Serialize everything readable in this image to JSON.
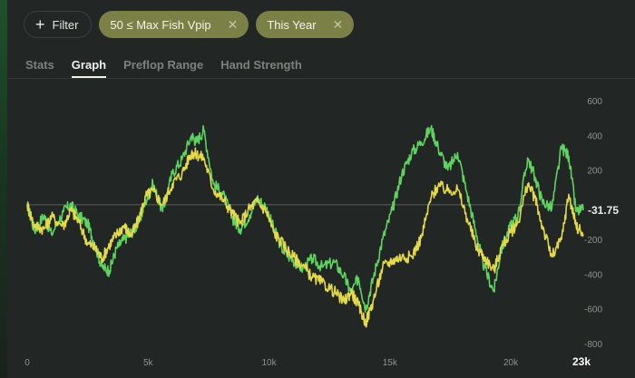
{
  "filters": {
    "add_label": "Filter",
    "chips": [
      {
        "label": "50 ≤ Max Fish Vpip"
      },
      {
        "label": "This Year"
      }
    ]
  },
  "tabs": [
    {
      "label": "Stats",
      "active": false
    },
    {
      "label": "Graph",
      "active": true
    },
    {
      "label": "Preflop Range",
      "active": false
    },
    {
      "label": "Hand Strength",
      "active": false
    }
  ],
  "chart_data": {
    "type": "line",
    "title": "",
    "xlabel": "",
    "ylabel": "",
    "xlim": [
      0,
      23000
    ],
    "ylim": [
      -800,
      600
    ],
    "x_ticks": [
      0,
      5000,
      10000,
      15000,
      20000
    ],
    "x_tick_labels": [
      "0",
      "5k",
      "10k",
      "15k",
      "20k"
    ],
    "x_end_label": "23k",
    "y_ticks": [
      600,
      400,
      200,
      0,
      -200,
      -400,
      -600,
      -800
    ],
    "y_tick_labels": [
      "600",
      "400",
      "200",
      "",
      "-200",
      "-400",
      "-600",
      "-800"
    ],
    "current_value": "-31.75",
    "zero_line": 0,
    "series": [
      {
        "color": "#5fd35f",
        "points": [
          [
            0,
            0
          ],
          [
            300,
            -150
          ],
          [
            700,
            -60
          ],
          [
            1000,
            -170
          ],
          [
            1500,
            -40
          ],
          [
            1800,
            0
          ],
          [
            2100,
            -60
          ],
          [
            2500,
            -110
          ],
          [
            2800,
            -230
          ],
          [
            3100,
            -360
          ],
          [
            3400,
            -380
          ],
          [
            3700,
            -250
          ],
          [
            4000,
            -200
          ],
          [
            4300,
            -160
          ],
          [
            4600,
            -110
          ],
          [
            4900,
            20
          ],
          [
            5200,
            120
          ],
          [
            5600,
            -40
          ],
          [
            6000,
            180
          ],
          [
            6400,
            260
          ],
          [
            6800,
            400
          ],
          [
            7000,
            360
          ],
          [
            7300,
            430
          ],
          [
            7700,
            120
          ],
          [
            8100,
            60
          ],
          [
            8500,
            -80
          ],
          [
            8800,
            -140
          ],
          [
            9200,
            -60
          ],
          [
            9500,
            40
          ],
          [
            9900,
            -20
          ],
          [
            10200,
            -140
          ],
          [
            10600,
            -270
          ],
          [
            11000,
            -320
          ],
          [
            11400,
            -370
          ],
          [
            11800,
            -310
          ],
          [
            12200,
            -360
          ],
          [
            12700,
            -330
          ],
          [
            13100,
            -410
          ],
          [
            13400,
            -510
          ],
          [
            13700,
            -420
          ],
          [
            14000,
            -600
          ],
          [
            14300,
            -430
          ],
          [
            14700,
            -200
          ],
          [
            15100,
            -30
          ],
          [
            15500,
            180
          ],
          [
            15900,
            300
          ],
          [
            16300,
            360
          ],
          [
            16700,
            440
          ],
          [
            17000,
            330
          ],
          [
            17400,
            200
          ],
          [
            17800,
            300
          ],
          [
            18200,
            60
          ],
          [
            18600,
            -180
          ],
          [
            18900,
            -360
          ],
          [
            19300,
            -500
          ],
          [
            19600,
            -260
          ],
          [
            20000,
            -120
          ],
          [
            20300,
            -60
          ],
          [
            20700,
            270
          ],
          [
            21000,
            160
          ],
          [
            21300,
            20
          ],
          [
            21700,
            -20
          ],
          [
            22100,
            330
          ],
          [
            22400,
            280
          ],
          [
            22700,
            -40
          ],
          [
            23000,
            -31.75
          ]
        ]
      },
      {
        "color": "#e3d94a",
        "points": [
          [
            0,
            0
          ],
          [
            300,
            -120
          ],
          [
            700,
            -140
          ],
          [
            1000,
            -70
          ],
          [
            1500,
            -120
          ],
          [
            1800,
            -30
          ],
          [
            2100,
            -90
          ],
          [
            2500,
            -220
          ],
          [
            2800,
            -250
          ],
          [
            3100,
            -310
          ],
          [
            3400,
            -230
          ],
          [
            3700,
            -170
          ],
          [
            4000,
            -120
          ],
          [
            4300,
            -180
          ],
          [
            4600,
            -90
          ],
          [
            4900,
            50
          ],
          [
            5200,
            80
          ],
          [
            5600,
            0
          ],
          [
            6000,
            120
          ],
          [
            6400,
            180
          ],
          [
            6800,
            300
          ],
          [
            7000,
            290
          ],
          [
            7300,
            270
          ],
          [
            7700,
            90
          ],
          [
            8100,
            30
          ],
          [
            8500,
            -50
          ],
          [
            8800,
            -110
          ],
          [
            9200,
            -20
          ],
          [
            9500,
            20
          ],
          [
            9900,
            -40
          ],
          [
            10200,
            -160
          ],
          [
            10600,
            -230
          ],
          [
            11000,
            -300
          ],
          [
            11400,
            -350
          ],
          [
            11800,
            -420
          ],
          [
            12200,
            -450
          ],
          [
            12700,
            -500
          ],
          [
            13100,
            -560
          ],
          [
            13400,
            -500
          ],
          [
            13700,
            -580
          ],
          [
            14000,
            -680
          ],
          [
            14300,
            -560
          ],
          [
            14700,
            -360
          ],
          [
            15100,
            -320
          ],
          [
            15500,
            -300
          ],
          [
            15900,
            -300
          ],
          [
            16300,
            -190
          ],
          [
            16700,
            40
          ],
          [
            17000,
            110
          ],
          [
            17400,
            80
          ],
          [
            17800,
            90
          ],
          [
            18200,
            -80
          ],
          [
            18600,
            -250
          ],
          [
            18900,
            -300
          ],
          [
            19300,
            -380
          ],
          [
            19600,
            -250
          ],
          [
            20000,
            -160
          ],
          [
            20300,
            -100
          ],
          [
            20700,
            120
          ],
          [
            21000,
            40
          ],
          [
            21300,
            -120
          ],
          [
            21700,
            -300
          ],
          [
            22100,
            -200
          ],
          [
            22400,
            60
          ],
          [
            22700,
            -120
          ],
          [
            23000,
            -170
          ]
        ]
      }
    ]
  }
}
